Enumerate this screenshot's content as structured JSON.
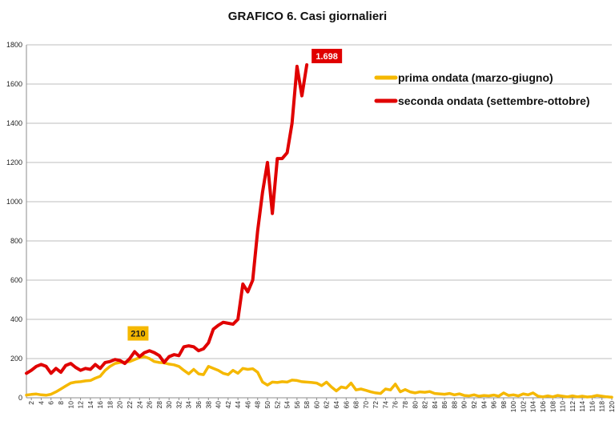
{
  "chart_data": {
    "type": "line",
    "title": "GRAFICO 6. Casi giornalieri",
    "xlabel": "",
    "ylabel": "",
    "xlim": [
      1,
      120
    ],
    "ylim": [
      0,
      1800
    ],
    "yticks": [
      0,
      200,
      400,
      600,
      800,
      1000,
      1200,
      1400,
      1600,
      1800
    ],
    "xticks": [
      2,
      4,
      6,
      8,
      10,
      12,
      14,
      16,
      18,
      20,
      22,
      24,
      26,
      28,
      30,
      32,
      34,
      36,
      38,
      40,
      42,
      44,
      46,
      48,
      50,
      52,
      54,
      56,
      58,
      60,
      62,
      64,
      66,
      68,
      70,
      72,
      74,
      76,
      78,
      80,
      82,
      84,
      86,
      88,
      90,
      92,
      94,
      96,
      98,
      100,
      102,
      104,
      106,
      108,
      110,
      112,
      114,
      116,
      118,
      120
    ],
    "grid": true,
    "legend_position": "top-right",
    "series": [
      {
        "name": "prima ondata (marzo-giugno)",
        "color": "#F5B800",
        "x_start": 1,
        "values": [
          14,
          17,
          19,
          15,
          13,
          18,
          30,
          45,
          60,
          75,
          80,
          82,
          86,
          88,
          100,
          110,
          140,
          160,
          175,
          180,
          182,
          185,
          195,
          205,
          210,
          200,
          185,
          180,
          178,
          172,
          168,
          160,
          140,
          122,
          145,
          122,
          118,
          160,
          150,
          140,
          125,
          118,
          140,
          125,
          150,
          145,
          148,
          130,
          80,
          65,
          80,
          78,
          82,
          80,
          90,
          88,
          82,
          80,
          78,
          75,
          62,
          80,
          55,
          35,
          55,
          50,
          75,
          40,
          45,
          38,
          30,
          25,
          22,
          45,
          40,
          70,
          30,
          42,
          30,
          25,
          30,
          28,
          32,
          22,
          20,
          18,
          22,
          15,
          20,
          12,
          10,
          15,
          8,
          12,
          10,
          14,
          8,
          25,
          12,
          15,
          10,
          20,
          15,
          25,
          8,
          5,
          10,
          5,
          12,
          8,
          5,
          10,
          5,
          8,
          4,
          6,
          12,
          8,
          5,
          3
        ]
      },
      {
        "name": "seconda ondata (settembre-ottobre)",
        "color": "#E00000",
        "x_start": 1,
        "values": [
          125,
          140,
          160,
          170,
          160,
          125,
          150,
          130,
          165,
          175,
          155,
          140,
          150,
          145,
          170,
          150,
          180,
          185,
          195,
          190,
          175,
          200,
          235,
          210,
          230,
          240,
          230,
          215,
          180,
          210,
          220,
          215,
          260,
          265,
          260,
          240,
          250,
          280,
          350,
          370,
          385,
          380,
          375,
          400,
          580,
          540,
          600,
          850,
          1050,
          1200,
          940,
          1220,
          1220,
          1250,
          1400,
          1690,
          1540,
          1698
        ]
      }
    ],
    "annotations": [
      {
        "text": "210",
        "x": 25,
        "y": 210,
        "series": 0
      },
      {
        "text": "1.698",
        "x": 58,
        "y": 1698,
        "series": 1
      }
    ]
  }
}
